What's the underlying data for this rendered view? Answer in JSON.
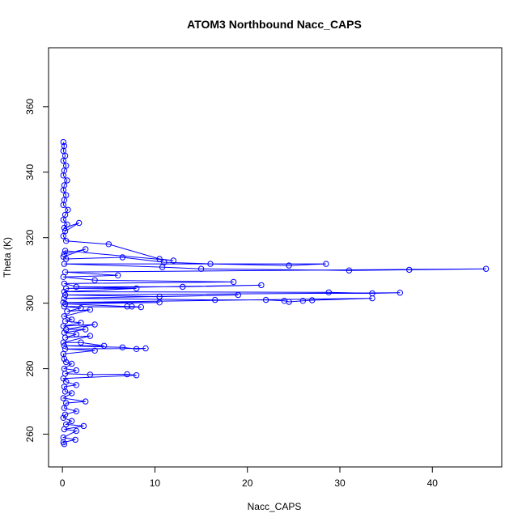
{
  "chart_data": {
    "type": "scatter",
    "title": "ATOM3 Northbound Nacc_CAPS",
    "xlabel": "Nacc_CAPS",
    "ylabel": "Theta (K)",
    "xlim": [
      -1.5,
      47.5
    ],
    "ylim": [
      250,
      378
    ],
    "x_ticks": [
      0,
      10,
      20,
      30,
      40
    ],
    "y_ticks": [
      260,
      280,
      300,
      320,
      340,
      360
    ],
    "grid": false,
    "color": "#0000ff",
    "marker": "open-circle",
    "connected": true,
    "series": [
      {
        "points": [
          [
            0.1,
            349.2
          ],
          [
            0.2,
            348
          ],
          [
            0.1,
            346.5
          ],
          [
            0.3,
            345
          ],
          [
            0.1,
            343.5
          ],
          [
            0.4,
            342
          ],
          [
            0.2,
            340.5
          ],
          [
            0.1,
            339
          ],
          [
            0.5,
            337.5
          ],
          [
            0.2,
            336
          ],
          [
            0.1,
            334.5
          ],
          [
            0.4,
            333
          ],
          [
            0.2,
            331.5
          ],
          [
            0.1,
            330
          ],
          [
            0.6,
            328.5
          ],
          [
            0.3,
            327
          ],
          [
            0.1,
            325.5
          ],
          [
            0.5,
            324
          ],
          [
            0.2,
            323
          ],
          [
            1.8,
            324.5
          ],
          [
            0.3,
            322
          ],
          [
            0.1,
            320.5
          ],
          [
            0.4,
            319
          ],
          [
            5,
            318
          ],
          [
            10.5,
            313.5
          ],
          [
            12,
            313
          ],
          [
            0.3,
            316
          ],
          [
            0.2,
            315
          ],
          [
            2.5,
            316.5
          ],
          [
            0.1,
            314.2
          ],
          [
            0.4,
            313.5
          ],
          [
            6.5,
            314
          ],
          [
            11,
            312.5
          ],
          [
            16,
            312
          ],
          [
            24.5,
            311.5
          ],
          [
            28.5,
            312
          ],
          [
            0.2,
            312
          ],
          [
            10.8,
            311
          ],
          [
            15,
            310.5
          ],
          [
            31,
            310
          ],
          [
            37.5,
            310.2
          ],
          [
            45.8,
            310.5
          ],
          [
            0.3,
            309.5
          ],
          [
            6,
            308.5
          ],
          [
            0.1,
            308
          ],
          [
            3.5,
            307
          ],
          [
            18.5,
            306.5
          ],
          [
            0.2,
            306
          ],
          [
            1.5,
            305
          ],
          [
            13,
            305
          ],
          [
            21.5,
            305.5
          ],
          [
            0.4,
            304.5
          ],
          [
            8,
            304.5
          ],
          [
            0.2,
            303.5
          ],
          [
            28.8,
            303.3
          ],
          [
            33.5,
            303
          ],
          [
            36.5,
            303.2
          ],
          [
            0.3,
            302.5
          ],
          [
            10.5,
            302
          ],
          [
            19,
            302.5
          ],
          [
            0.2,
            301.5
          ],
          [
            16.5,
            301
          ],
          [
            22,
            301
          ],
          [
            24,
            300.7
          ],
          [
            24.5,
            300.4
          ],
          [
            26,
            300.7
          ],
          [
            27,
            300.9
          ],
          [
            33.5,
            301.5
          ],
          [
            0.1,
            300.2
          ],
          [
            10.5,
            300.2
          ],
          [
            0.3,
            299.8
          ],
          [
            7,
            299
          ],
          [
            7.5,
            299
          ],
          [
            8.5,
            298.8
          ],
          [
            0.2,
            299
          ],
          [
            2,
            298.5
          ],
          [
            0.5,
            297.5
          ],
          [
            3,
            298
          ],
          [
            0.2,
            296
          ],
          [
            1,
            295
          ],
          [
            0.3,
            294.5
          ],
          [
            2,
            294
          ],
          [
            0.1,
            293
          ],
          [
            3.5,
            293.5
          ],
          [
            0.4,
            292
          ],
          [
            2.5,
            292
          ],
          [
            0.2,
            291
          ],
          [
            1.5,
            290.5
          ],
          [
            0.3,
            289.5
          ],
          [
            3,
            290
          ],
          [
            0.1,
            288
          ],
          [
            2,
            288
          ],
          [
            4.5,
            287
          ],
          [
            0.2,
            287
          ],
          [
            6.5,
            286.5
          ],
          [
            8,
            286
          ],
          [
            9,
            286.2
          ],
          [
            0.3,
            286
          ],
          [
            3.5,
            285.5
          ],
          [
            0.1,
            284.5
          ],
          [
            0.2,
            283
          ],
          [
            0.4,
            282
          ],
          [
            1,
            281.5
          ],
          [
            0.2,
            280
          ],
          [
            1.5,
            279.5
          ],
          [
            0.3,
            278.5
          ],
          [
            3,
            278.2
          ],
          [
            7,
            278.3
          ],
          [
            8,
            278
          ],
          [
            0.1,
            277
          ],
          [
            0.4,
            276
          ],
          [
            1.5,
            275
          ],
          [
            0.2,
            274.5
          ],
          [
            0.3,
            273
          ],
          [
            1,
            272.5
          ],
          [
            0.1,
            271
          ],
          [
            2.5,
            270
          ],
          [
            0.4,
            269.5
          ],
          [
            0.2,
            268
          ],
          [
            1.5,
            267
          ],
          [
            0.3,
            266
          ],
          [
            0.1,
            265
          ],
          [
            1,
            264
          ],
          [
            0.4,
            263
          ],
          [
            2.3,
            262.5
          ],
          [
            0.2,
            261.5
          ],
          [
            1.5,
            261
          ],
          [
            0.1,
            259
          ],
          [
            1.4,
            258.3
          ],
          [
            0.1,
            257.5
          ],
          [
            0.2,
            257
          ]
        ]
      }
    ]
  }
}
